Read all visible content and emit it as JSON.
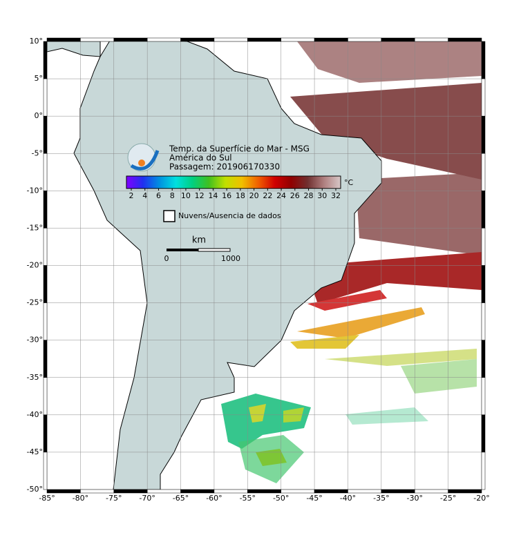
{
  "map": {
    "title": "Temp. da Superfície do Mar - MSG",
    "subtitle": "América do Sul",
    "pass": "Passagem: 201906170330",
    "xlim": [
      -85,
      -20
    ],
    "ylim": [
      -50,
      10
    ],
    "xticks": [
      {
        "value": -85,
        "label": "-85°"
      },
      {
        "value": -80,
        "label": "-80°"
      },
      {
        "value": -75,
        "label": "-75°"
      },
      {
        "value": -70,
        "label": "-70°"
      },
      {
        "value": -65,
        "label": "-65°"
      },
      {
        "value": -60,
        "label": "-60°"
      },
      {
        "value": -55,
        "label": "-55°"
      },
      {
        "value": -50,
        "label": "-50°"
      },
      {
        "value": -45,
        "label": "-45°"
      },
      {
        "value": -40,
        "label": "-40°"
      },
      {
        "value": -35,
        "label": "-35°"
      },
      {
        "value": -30,
        "label": "-30°"
      },
      {
        "value": -25,
        "label": "-25°"
      },
      {
        "value": -20,
        "label": "-20°"
      }
    ],
    "yticks": [
      {
        "value": 10,
        "label": "10°"
      },
      {
        "value": 5,
        "label": "5°"
      },
      {
        "value": 0,
        "label": "0°"
      },
      {
        "value": -5,
        "label": "-5°"
      },
      {
        "value": -10,
        "label": "-10°"
      },
      {
        "value": -15,
        "label": "-15°"
      },
      {
        "value": -20,
        "label": "-20°"
      },
      {
        "value": -25,
        "label": "-25°"
      },
      {
        "value": -30,
        "label": "-30°"
      },
      {
        "value": -35,
        "label": "-35°"
      },
      {
        "value": -40,
        "label": "-40°"
      },
      {
        "value": -45,
        "label": "-45°"
      },
      {
        "value": -50,
        "label": "-50°"
      }
    ],
    "colorbar": {
      "ticks": [
        2,
        4,
        6,
        8,
        10,
        12,
        14,
        16,
        18,
        20,
        22,
        24,
        26,
        28,
        30,
        32
      ],
      "unit": "°C",
      "colors": [
        "#8000ff",
        "#2030f0",
        "#0090e0",
        "#00e0e0",
        "#00d080",
        "#40c020",
        "#c0e000",
        "#f0c000",
        "#f06000",
        "#d00000",
        "#900000",
        "#703030",
        "#b08080",
        "#d8c8c8"
      ]
    },
    "legend": "Nuvens/Ausencia de dados",
    "scale": {
      "unit": "km",
      "labels": [
        "0",
        "1000"
      ]
    }
  }
}
